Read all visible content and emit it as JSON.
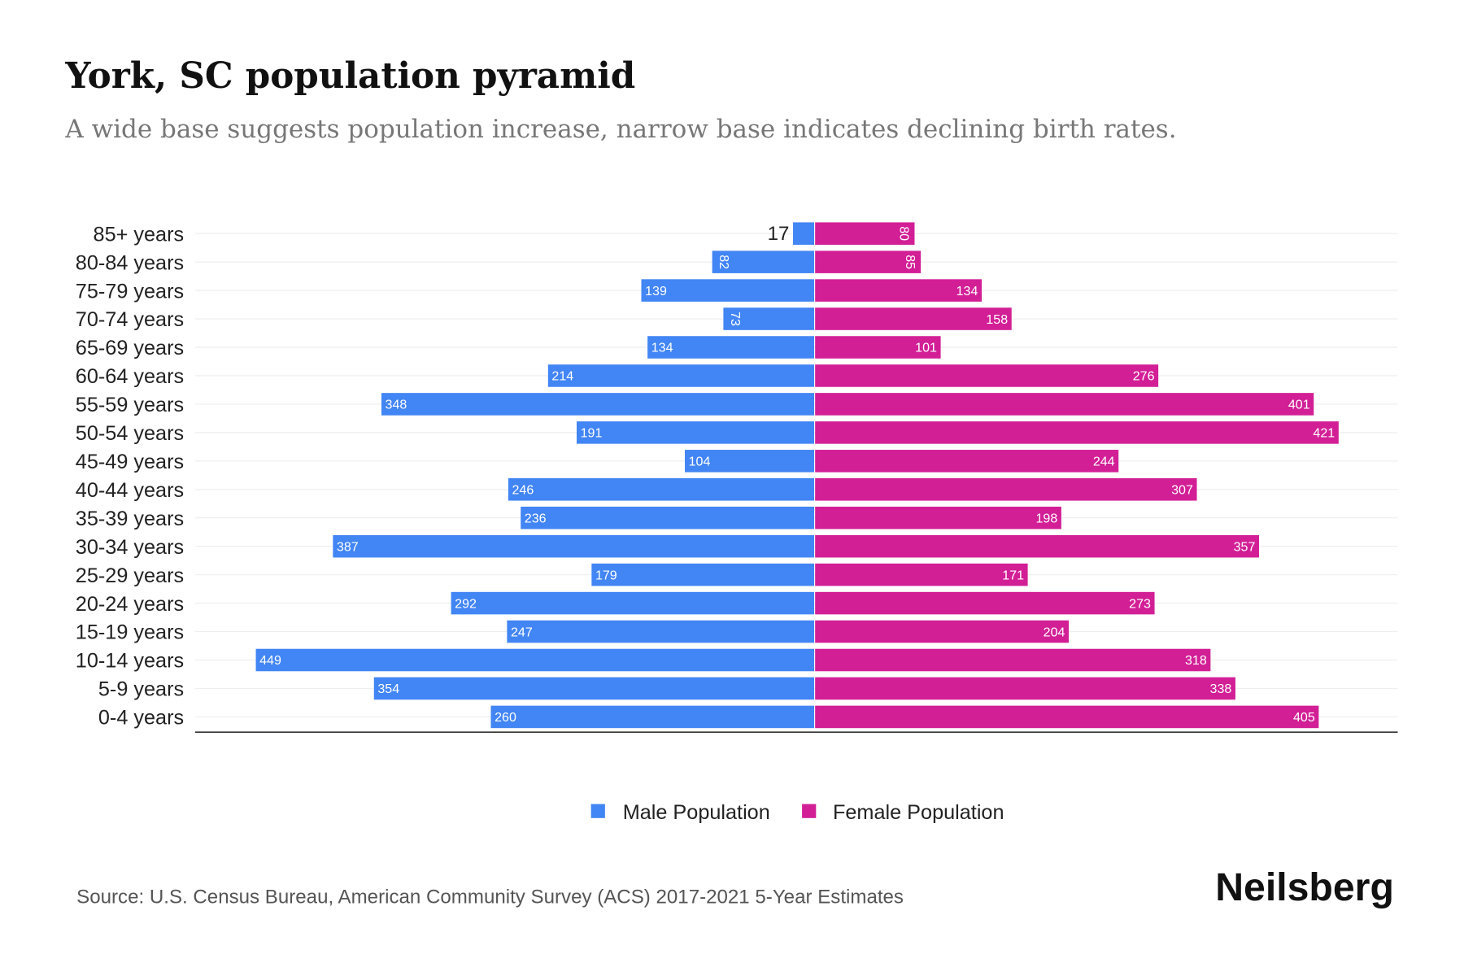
{
  "chart_data": {
    "type": "bar",
    "orientation": "horizontal-pyramid",
    "title": "York, SC population pyramid",
    "subtitle": "A wide base suggests population increase, narrow base indicates declining birth rates.",
    "categories": [
      "85+ years",
      "80-84 years",
      "75-79 years",
      "70-74 years",
      "65-69 years",
      "60-64 years",
      "55-59 years",
      "50-54 years",
      "45-49 years",
      "40-44 years",
      "35-39 years",
      "30-34 years",
      "25-29 years",
      "20-24 years",
      "15-19 years",
      "10-14 years",
      "5-9 years",
      "0-4 years"
    ],
    "series": [
      {
        "name": "Male Population",
        "color": "#4285F4",
        "values": [
          17,
          82,
          139,
          73,
          134,
          214,
          348,
          191,
          104,
          246,
          236,
          387,
          179,
          292,
          247,
          449,
          354,
          260
        ]
      },
      {
        "name": "Female Population",
        "color": "#D21F96",
        "values": [
          80,
          85,
          134,
          158,
          101,
          276,
          401,
          421,
          244,
          307,
          198,
          357,
          171,
          273,
          204,
          318,
          338,
          405
        ]
      }
    ],
    "xlim": [
      -500,
      500
    ],
    "grid": true,
    "legend_position": "bottom-center"
  },
  "source": "Source: U.S. Census Bureau, American Community Survey (ACS) 2017-2021 5-Year Estimates",
  "brand": "Neilsberg"
}
